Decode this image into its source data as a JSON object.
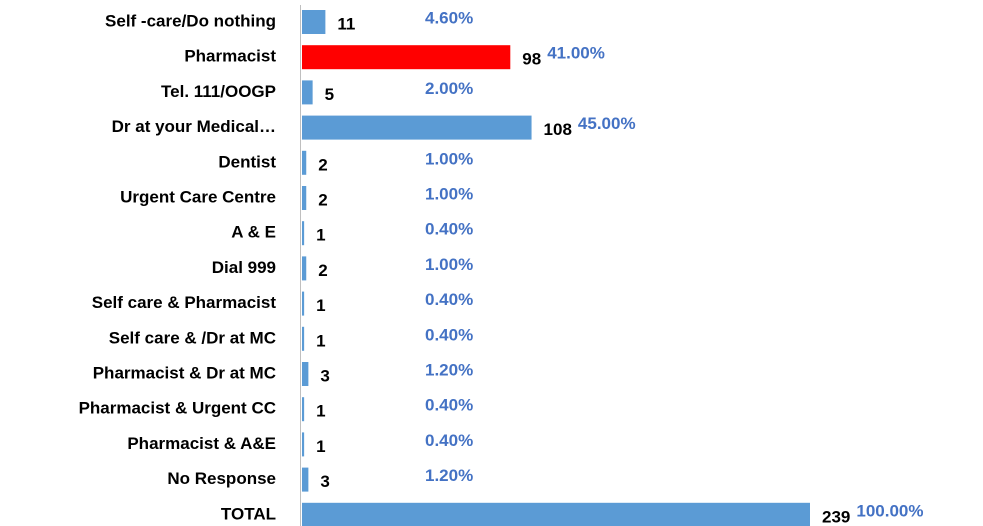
{
  "chart_data": {
    "type": "hbar",
    "categories": [
      "Self -care/Do nothing",
      "Pharmacist",
      "Tel. 111/OOGP",
      "Dr at your Medical…",
      "Dentist",
      "Urgent Care Centre",
      "A & E",
      "Dial 999",
      "Self care & Pharmacist",
      "Self care & /Dr at MC",
      "Pharmacist & Dr at MC",
      "Pharmacist & Urgent CC",
      "Pharmacist & A&E",
      "No Response",
      "TOTAL"
    ],
    "values": [
      11,
      98,
      5,
      108,
      2,
      2,
      1,
      2,
      1,
      1,
      3,
      1,
      1,
      3,
      239
    ],
    "percentages": [
      4.6,
      41,
      2,
      45,
      1,
      1,
      0.4,
      1,
      0.4,
      0.4,
      1.2,
      0.4,
      0.4,
      1.2,
      100
    ],
    "percentage_labels": [
      "4.60%",
      "41.00%",
      "2.00%",
      "45.00%",
      "1.00%",
      "1.00%",
      "0.40%",
      "1.00%",
      "0.40%",
      "0.40%",
      "1.20%",
      "0.40%",
      "0.40%",
      "1.20%",
      "100.00%"
    ],
    "colors": [
      "#5b9bd5",
      "#ff0000",
      "#5b9bd5",
      "#5b9bd5",
      "#5b9bd5",
      "#5b9bd5",
      "#5b9bd5",
      "#5b9bd5",
      "#5b9bd5",
      "#5b9bd5",
      "#5b9bd5",
      "#5b9bd5",
      "#5b9bd5",
      "#5b9bd5",
      "#5b9bd5"
    ]
  }
}
